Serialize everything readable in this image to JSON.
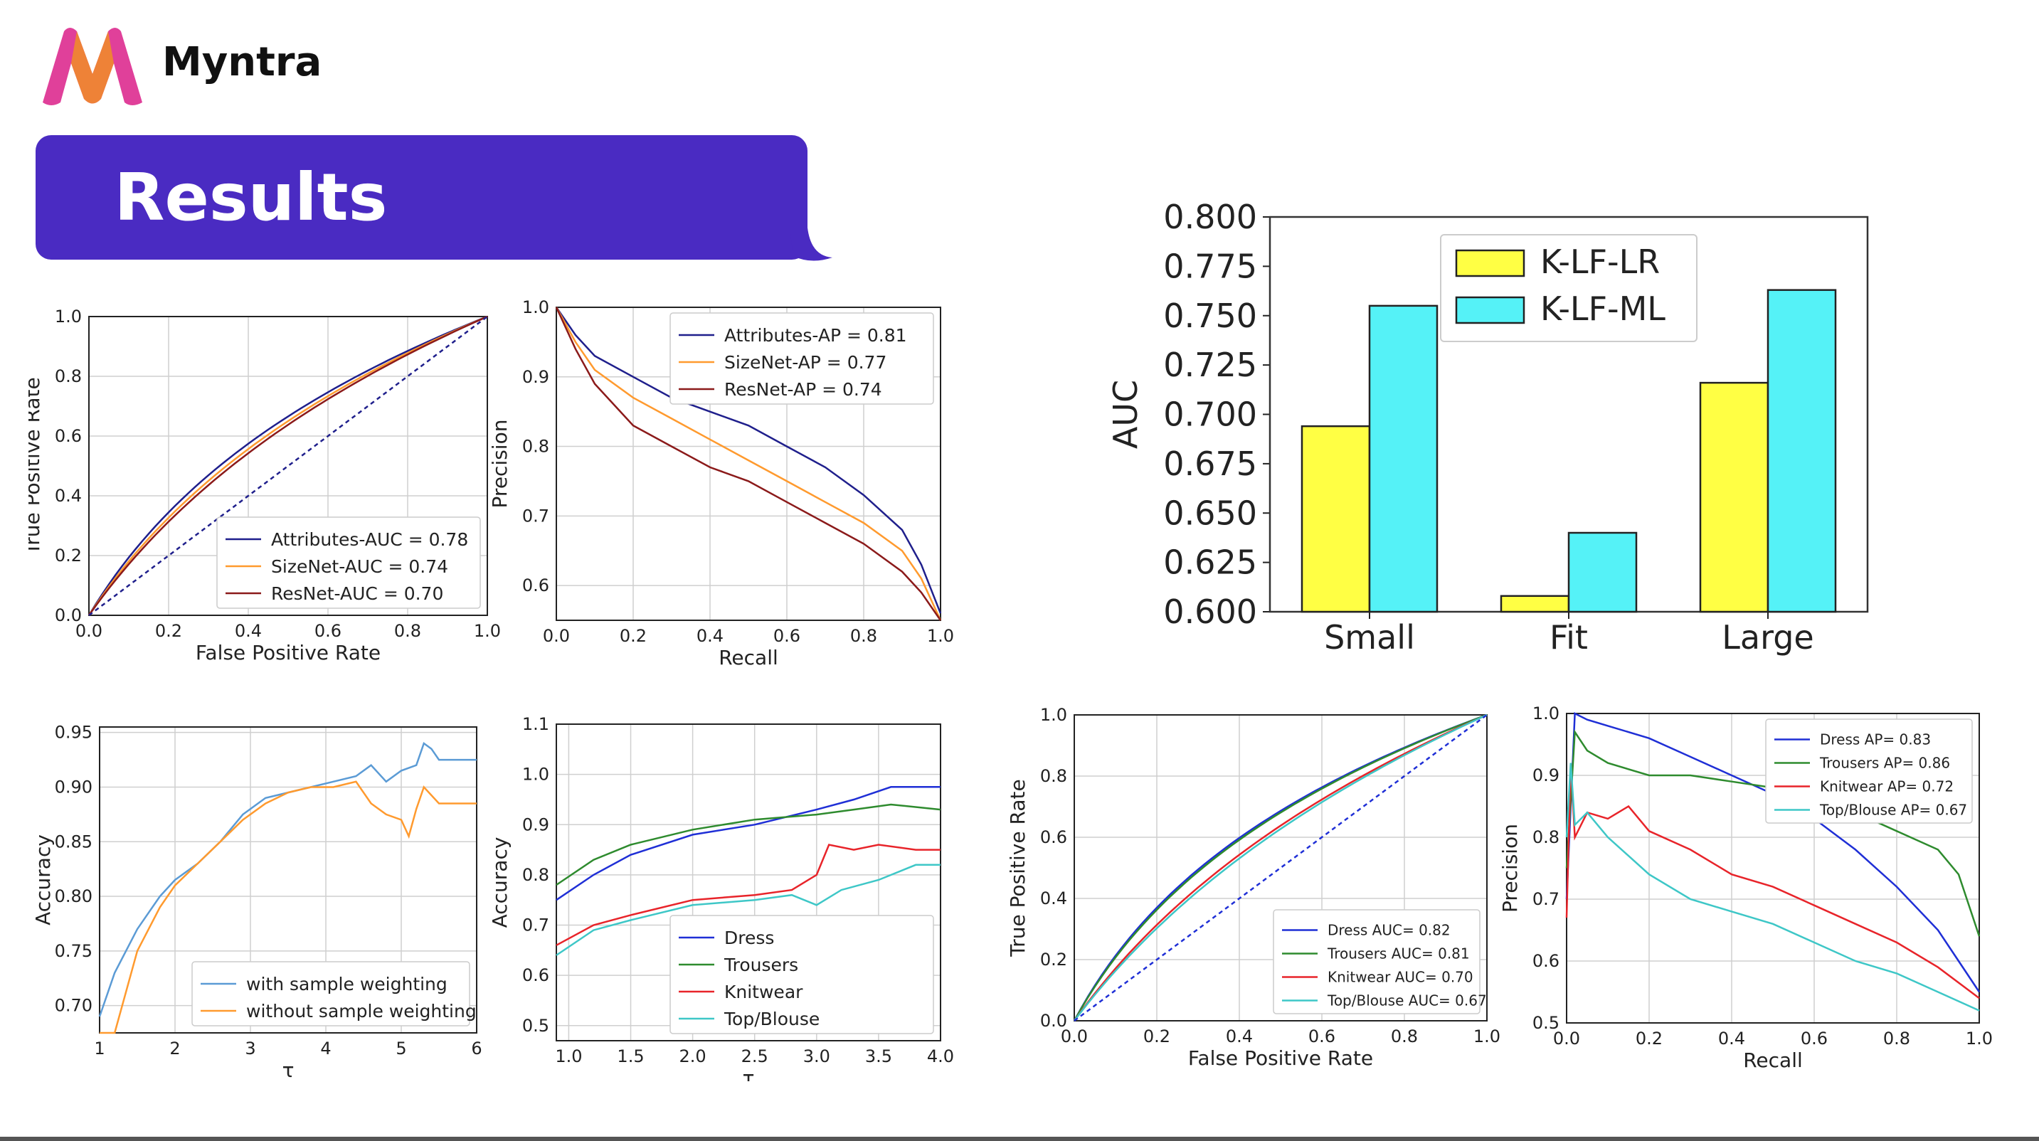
{
  "header": {
    "brand": "Myntra",
    "title": "Results"
  },
  "colors": {
    "banner": "#4a2bc2",
    "logo_pink": "#e0409a",
    "logo_orange": "#f08a2c"
  },
  "chart_data": [
    {
      "type": "line",
      "xlabel": "False Positive Rate",
      "ylabel": "True Positive Rate",
      "xlim": [
        0,
        1
      ],
      "ylim": [
        0,
        1
      ],
      "xticks": [
        "0.0",
        "0.2",
        "0.4",
        "0.6",
        "0.8",
        "1.0"
      ],
      "yticks": [
        "0.0",
        "0.2",
        "0.4",
        "0.6",
        "0.8",
        "1.0"
      ],
      "legend_position": "lower-right",
      "series": [
        {
          "name": "Attributes-AUC = 0.78",
          "color": "#1f1f8c",
          "kind": "roc",
          "k": 3.2
        },
        {
          "name": "SizeNet-AUC = 0.74",
          "color": "#ff9a2e",
          "kind": "roc",
          "k": 2.6
        },
        {
          "name": "ResNet-AUC = 0.70",
          "color": "#8b1a1a",
          "kind": "roc",
          "k": 2.2
        },
        {
          "name": "",
          "color": "#1f1f8c",
          "kind": "diag",
          "dashed": true
        }
      ]
    },
    {
      "type": "line",
      "xlabel": "Recall",
      "ylabel": "Precision",
      "xlim": [
        0,
        1
      ],
      "ylim": [
        0.55,
        1.0
      ],
      "xticks": [
        "0.0",
        "0.2",
        "0.4",
        "0.6",
        "0.8",
        "1.0"
      ],
      "yticks": [
        "0.6",
        "0.7",
        "0.8",
        "0.9",
        "1.0"
      ],
      "legend_position": "top-right",
      "series": [
        {
          "name": "Attributes-AP = 0.81",
          "color": "#1f1f8c",
          "x": [
            0,
            0.05,
            0.1,
            0.2,
            0.3,
            0.4,
            0.5,
            0.6,
            0.7,
            0.8,
            0.9,
            0.95,
            1.0
          ],
          "y": [
            1.0,
            0.96,
            0.93,
            0.9,
            0.87,
            0.85,
            0.83,
            0.8,
            0.77,
            0.73,
            0.68,
            0.63,
            0.56
          ]
        },
        {
          "name": "SizeNet-AP = 0.77",
          "color": "#ff9a2e",
          "x": [
            0,
            0.05,
            0.1,
            0.2,
            0.3,
            0.4,
            0.5,
            0.6,
            0.7,
            0.8,
            0.9,
            0.95,
            1.0
          ],
          "y": [
            1.0,
            0.95,
            0.91,
            0.87,
            0.84,
            0.81,
            0.78,
            0.75,
            0.72,
            0.69,
            0.65,
            0.61,
            0.55
          ]
        },
        {
          "name": "ResNet-AP = 0.74",
          "color": "#8b1a1a",
          "x": [
            0,
            0.05,
            0.1,
            0.2,
            0.3,
            0.4,
            0.5,
            0.6,
            0.7,
            0.8,
            0.9,
            0.95,
            1.0
          ],
          "y": [
            1.0,
            0.94,
            0.89,
            0.83,
            0.8,
            0.77,
            0.75,
            0.72,
            0.69,
            0.66,
            0.62,
            0.59,
            0.55
          ]
        }
      ]
    },
    {
      "type": "bar",
      "ylabel": "AUC",
      "categories": [
        "Small",
        "Fit",
        "Large"
      ],
      "ylim": [
        0.6,
        0.8
      ],
      "yticks": [
        "0.600",
        "0.625",
        "0.650",
        "0.675",
        "0.700",
        "0.725",
        "0.750",
        "0.775",
        "0.800"
      ],
      "legend_position": "top-left",
      "series": [
        {
          "name": "K-LF-LR",
          "color": "#ffff44",
          "values": [
            0.694,
            0.608,
            0.716
          ]
        },
        {
          "name": "K-LF-ML",
          "color": "#55f2f7",
          "values": [
            0.755,
            0.64,
            0.763
          ]
        }
      ]
    },
    {
      "type": "line",
      "xlabel": "τ",
      "ylabel": "Accuracy",
      "xlim": [
        1,
        6
      ],
      "ylim": [
        0.675,
        0.955
      ],
      "xticks": [
        "1",
        "2",
        "3",
        "4",
        "5",
        "6"
      ],
      "yticks": [
        "0.70",
        "0.75",
        "0.80",
        "0.85",
        "0.90",
        "0.95"
      ],
      "legend_position": "lower-right",
      "series": [
        {
          "name": "with sample weighting",
          "color": "#5b9bd5",
          "x": [
            1,
            1.2,
            1.5,
            1.8,
            2.0,
            2.3,
            2.6,
            2.9,
            3.2,
            3.5,
            3.8,
            4.1,
            4.4,
            4.6,
            4.8,
            5.0,
            5.2,
            5.3,
            5.4,
            5.5,
            6.0
          ],
          "y": [
            0.69,
            0.73,
            0.77,
            0.8,
            0.815,
            0.83,
            0.85,
            0.875,
            0.89,
            0.895,
            0.9,
            0.905,
            0.91,
            0.92,
            0.905,
            0.915,
            0.92,
            0.94,
            0.935,
            0.925,
            0.925
          ]
        },
        {
          "name": "without sample weighting",
          "color": "#ff9a2e",
          "x": [
            1,
            1.2,
            1.3,
            1.5,
            1.8,
            2.0,
            2.3,
            2.6,
            2.9,
            3.2,
            3.5,
            3.8,
            4.1,
            4.4,
            4.6,
            4.8,
            5.0,
            5.1,
            5.2,
            5.3,
            5.5,
            6.0
          ],
          "y": [
            0.675,
            0.675,
            0.7,
            0.75,
            0.79,
            0.81,
            0.83,
            0.85,
            0.87,
            0.885,
            0.895,
            0.9,
            0.9,
            0.905,
            0.885,
            0.875,
            0.87,
            0.855,
            0.88,
            0.9,
            0.885,
            0.885
          ]
        }
      ]
    },
    {
      "type": "line",
      "xlabel": "τ",
      "ylabel": "Accuracy",
      "xlim": [
        0.9,
        4.0
      ],
      "ylim": [
        0.47,
        1.1
      ],
      "xticks": [
        "1.0",
        "1.5",
        "2.0",
        "2.5",
        "3.0",
        "3.5",
        "4.0"
      ],
      "yticks": [
        "0.5",
        "0.6",
        "0.7",
        "0.8",
        "0.9",
        "1.0",
        "1.1"
      ],
      "legend_position": "lower-right",
      "series": [
        {
          "name": "Dress",
          "color": "#1f2fd6",
          "x": [
            0.9,
            1.2,
            1.5,
            2.0,
            2.5,
            3.0,
            3.3,
            3.6,
            4.0
          ],
          "y": [
            0.75,
            0.8,
            0.84,
            0.88,
            0.9,
            0.93,
            0.95,
            0.975,
            0.975
          ]
        },
        {
          "name": "Trousers",
          "color": "#2e8b2e",
          "x": [
            0.9,
            1.2,
            1.5,
            2.0,
            2.5,
            3.0,
            3.3,
            3.6,
            4.0
          ],
          "y": [
            0.78,
            0.83,
            0.86,
            0.89,
            0.91,
            0.92,
            0.93,
            0.94,
            0.93
          ]
        },
        {
          "name": "Knitwear",
          "color": "#e8242a",
          "x": [
            0.9,
            1.2,
            1.5,
            2.0,
            2.5,
            2.8,
            3.0,
            3.1,
            3.3,
            3.5,
            3.8,
            4.0
          ],
          "y": [
            0.66,
            0.7,
            0.72,
            0.75,
            0.76,
            0.77,
            0.8,
            0.86,
            0.85,
            0.86,
            0.85,
            0.85
          ]
        },
        {
          "name": "Top/Blouse",
          "color": "#3ec7c7",
          "x": [
            0.9,
            1.2,
            1.5,
            2.0,
            2.5,
            2.8,
            3.0,
            3.2,
            3.5,
            3.8,
            4.0
          ],
          "y": [
            0.64,
            0.69,
            0.71,
            0.74,
            0.75,
            0.76,
            0.74,
            0.77,
            0.79,
            0.82,
            0.82
          ]
        }
      ]
    },
    {
      "type": "line",
      "xlabel": "False Positive Rate",
      "ylabel": "True Positive Rate",
      "xlim": [
        0,
        1
      ],
      "ylim": [
        0,
        1
      ],
      "xticks": [
        "0.0",
        "0.2",
        "0.4",
        "0.6",
        "0.8",
        "1.0"
      ],
      "yticks": [
        "0.0",
        "0.2",
        "0.4",
        "0.6",
        "0.8",
        "1.0"
      ],
      "legend_position": "lower-right",
      "series": [
        {
          "name": "Dress AUC= 0.82",
          "color": "#1f2fd6",
          "kind": "roc",
          "k": 4.2
        },
        {
          "name": "Trousers AUC= 0.81",
          "color": "#2e8b2e",
          "kind": "roc",
          "k": 3.9
        },
        {
          "name": "Knitwear AUC= 0.70",
          "color": "#e8242a",
          "kind": "roc",
          "k": 2.2
        },
        {
          "name": "Top/Blouse AUC= 0.67",
          "color": "#3ec7c7",
          "kind": "roc",
          "k": 1.9
        },
        {
          "name": "",
          "color": "#1f2fd6",
          "kind": "diag",
          "dashed": true
        }
      ]
    },
    {
      "type": "line",
      "xlabel": "Recall",
      "ylabel": "Precision",
      "xlim": [
        0,
        1
      ],
      "ylim": [
        0.5,
        1.0
      ],
      "xticks": [
        "0.0",
        "0.2",
        "0.4",
        "0.6",
        "0.8",
        "1.0"
      ],
      "yticks": [
        "0.5",
        "0.6",
        "0.7",
        "0.8",
        "0.9",
        "1.0"
      ],
      "legend_position": "top-right",
      "series": [
        {
          "name": "Dress AP= 0.83",
          "color": "#1f2fd6",
          "x": [
            0.0,
            0.02,
            0.05,
            0.1,
            0.2,
            0.3,
            0.4,
            0.5,
            0.6,
            0.7,
            0.8,
            0.9,
            0.95,
            1.0
          ],
          "y": [
            0.7,
            1.0,
            0.99,
            0.98,
            0.96,
            0.93,
            0.9,
            0.87,
            0.83,
            0.78,
            0.72,
            0.65,
            0.6,
            0.55
          ]
        },
        {
          "name": "Trousers AP= 0.86",
          "color": "#2e8b2e",
          "x": [
            0.0,
            0.02,
            0.05,
            0.1,
            0.2,
            0.3,
            0.4,
            0.5,
            0.6,
            0.7,
            0.8,
            0.9,
            0.95,
            1.0
          ],
          "y": [
            0.75,
            0.97,
            0.94,
            0.92,
            0.9,
            0.9,
            0.89,
            0.88,
            0.86,
            0.84,
            0.81,
            0.78,
            0.74,
            0.64
          ]
        },
        {
          "name": "Knitwear AP= 0.72",
          "color": "#e8242a",
          "x": [
            0.0,
            0.01,
            0.02,
            0.05,
            0.1,
            0.15,
            0.2,
            0.3,
            0.4,
            0.5,
            0.6,
            0.7,
            0.8,
            0.9,
            1.0
          ],
          "y": [
            0.67,
            0.92,
            0.8,
            0.84,
            0.83,
            0.85,
            0.81,
            0.78,
            0.74,
            0.72,
            0.69,
            0.66,
            0.63,
            0.59,
            0.54
          ]
        },
        {
          "name": "Top/Blouse AP= 0.67",
          "color": "#3ec7c7",
          "x": [
            0.0,
            0.01,
            0.02,
            0.05,
            0.1,
            0.15,
            0.2,
            0.3,
            0.4,
            0.5,
            0.6,
            0.7,
            0.8,
            0.9,
            1.0
          ],
          "y": [
            0.8,
            0.92,
            0.82,
            0.84,
            0.8,
            0.77,
            0.74,
            0.7,
            0.68,
            0.66,
            0.63,
            0.6,
            0.58,
            0.55,
            0.52
          ]
        }
      ]
    }
  ]
}
